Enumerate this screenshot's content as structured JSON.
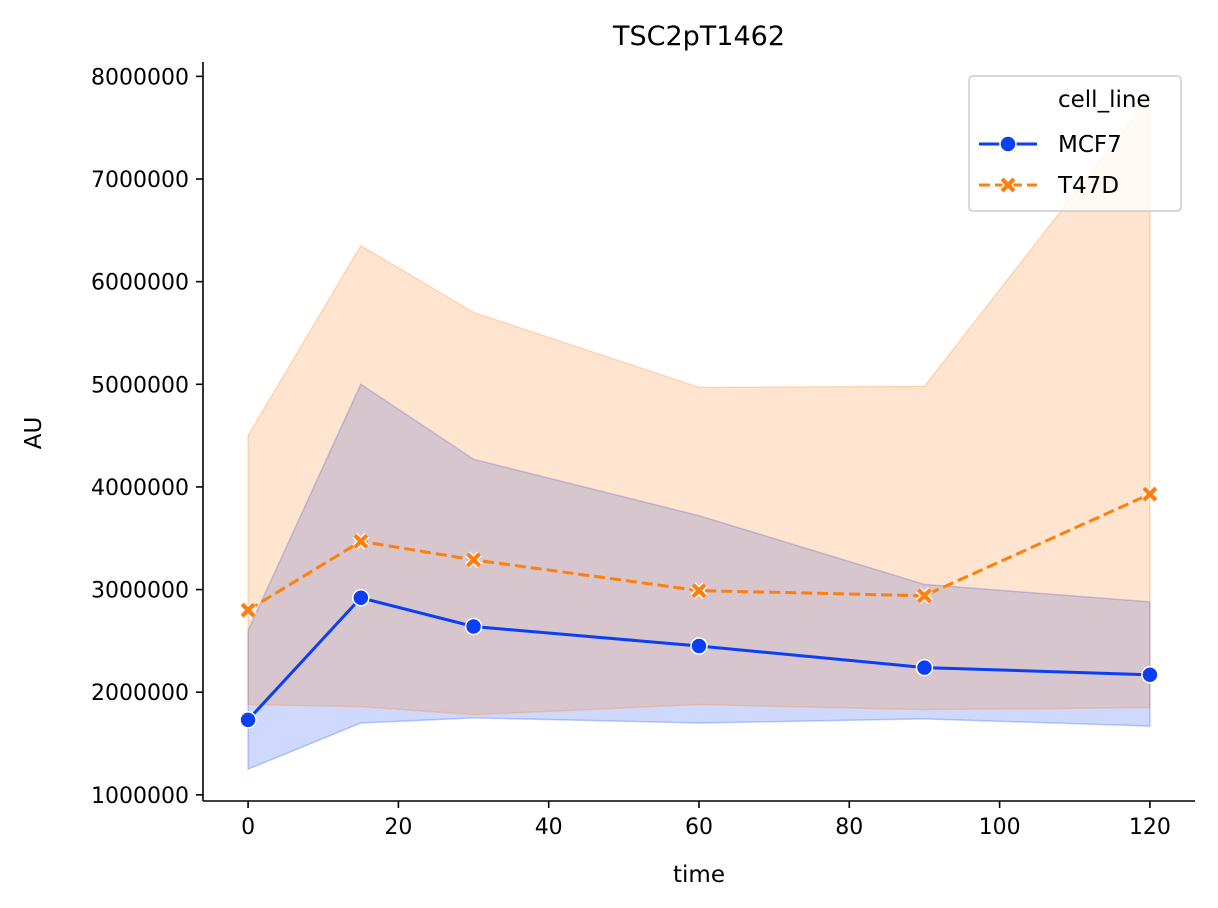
{
  "chart_data": {
    "type": "line",
    "title": "TSC2pT1462",
    "xlabel": "time",
    "ylabel": "AU",
    "xlim": [
      -6,
      126
    ],
    "ylim": [
      940000,
      8140000
    ],
    "xticks": [
      0,
      20,
      40,
      60,
      80,
      100,
      120
    ],
    "yticks": [
      1000000,
      2000000,
      3000000,
      4000000,
      5000000,
      6000000,
      7000000,
      8000000
    ],
    "grid": false,
    "legend": {
      "title": "cell_line",
      "placement": "top-right"
    },
    "series": [
      {
        "name": "MCF7",
        "color": "#0a3ff5",
        "marker": "circle",
        "linestyle": "solid",
        "x": [
          0,
          15,
          30,
          60,
          90,
          120
        ],
        "y": [
          1730000,
          2920000,
          2640000,
          2450000,
          2240000,
          2170000
        ],
        "ci_lower": [
          1250000,
          1700000,
          1750000,
          1700000,
          1740000,
          1670000
        ],
        "ci_upper": [
          2600000,
          5000000,
          4270000,
          3720000,
          3050000,
          2880000
        ]
      },
      {
        "name": "T47D",
        "color": "#ff7f0e",
        "marker": "x",
        "linestyle": "dashed",
        "x": [
          0,
          15,
          30,
          60,
          90,
          120
        ],
        "y": [
          2800000,
          3470000,
          3290000,
          2990000,
          2940000,
          3930000
        ],
        "ci_lower": [
          1880000,
          1860000,
          1780000,
          1880000,
          1830000,
          1850000
        ],
        "ci_upper": [
          4500000,
          6350000,
          5700000,
          4970000,
          4980000,
          7800000
        ]
      }
    ]
  }
}
